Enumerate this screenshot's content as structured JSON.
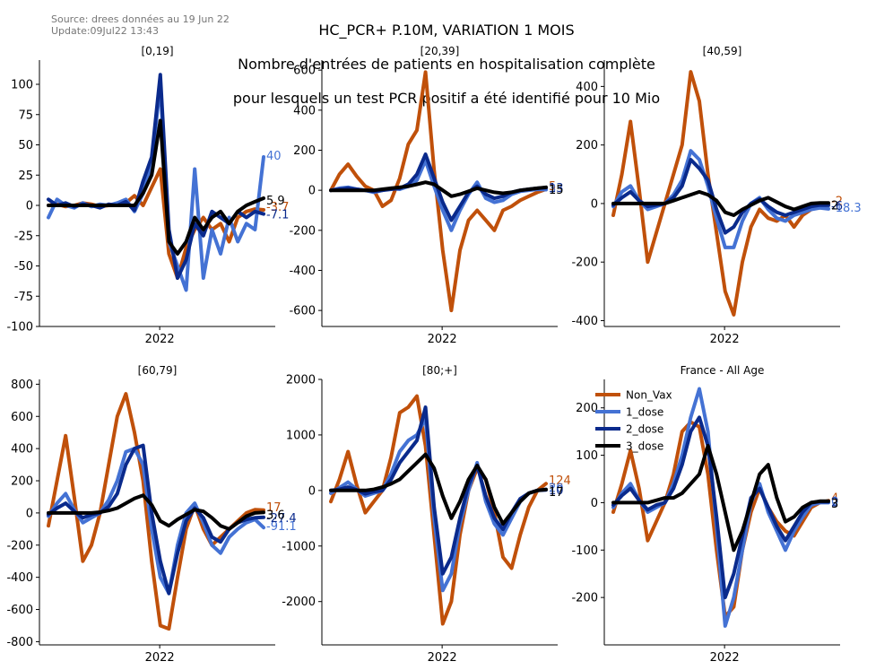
{
  "header": {
    "source_line1": "Source: drees données au 19 Jun 22",
    "source_line2": "Update:09Jul22 13:43",
    "title_line1": "HC_PCR+ P.10M, VARIATION 1 MOIS",
    "title_line2": "Nombre d'entrées de patients en hospitalisation complète",
    "title_line3": "pour lesquels un test PCR positif a été identifié pour 10 Mio"
  },
  "colors": {
    "Non_Vax": "#c0500a",
    "1_dose": "#4472d4",
    "2_dose": "#0a2a8c",
    "3_dose": "#000000"
  },
  "chart_data": [
    {
      "type": "line",
      "title": "[0,19]",
      "xtick": "2022",
      "ylim": [
        -100,
        120
      ],
      "yticks": [
        -100,
        -75,
        -50,
        -25,
        0,
        25,
        50,
        75,
        100
      ],
      "x": [
        0,
        4,
        8,
        12,
        16,
        20,
        24,
        28,
        32,
        36,
        40,
        44,
        48,
        52,
        56,
        60,
        64,
        68,
        72,
        76,
        80,
        84,
        88,
        92,
        96,
        100
      ],
      "series": [
        {
          "name": "Non_Vax",
          "values": [
            0,
            1,
            -1,
            0,
            2,
            1,
            -1,
            0,
            1,
            2,
            8,
            0,
            15,
            30,
            -40,
            -60,
            -35,
            -20,
            -10,
            -20,
            -15,
            -30,
            -10,
            -5,
            -3,
            -3.7
          ]
        },
        {
          "name": "1_dose",
          "values": [
            -10,
            5,
            0,
            -2,
            2,
            -1,
            1,
            0,
            2,
            5,
            -5,
            10,
            35,
            100,
            -30,
            -50,
            -70,
            30,
            -60,
            -20,
            -40,
            -10,
            -30,
            -15,
            -20,
            40
          ]
        },
        {
          "name": "2_dose",
          "values": [
            5,
            0,
            2,
            -1,
            1,
            0,
            -2,
            1,
            0,
            3,
            -4,
            20,
            40,
            108,
            -20,
            -60,
            -45,
            -15,
            -25,
            -5,
            -10,
            -15,
            -5,
            -10,
            -5,
            -7.1
          ]
        },
        {
          "name": "3_dose",
          "values": [
            0,
            0,
            0,
            0,
            0,
            0,
            0,
            0,
            0,
            0,
            0,
            10,
            25,
            70,
            -30,
            -40,
            -30,
            -10,
            -20,
            -10,
            -5,
            -15,
            -5,
            0,
            3,
            5.9
          ]
        }
      ],
      "end_labels": [
        "-3.7",
        "40",
        "-7.1",
        "5.9"
      ]
    },
    {
      "type": "line",
      "title": "[20,39]",
      "xtick": "2022",
      "ylim": [
        -680,
        650
      ],
      "yticks": [
        -600,
        -400,
        -200,
        0,
        200,
        400,
        600
      ],
      "x": [
        0,
        4,
        8,
        12,
        16,
        20,
        24,
        28,
        32,
        36,
        40,
        44,
        48,
        52,
        56,
        60,
        64,
        68,
        72,
        76,
        80,
        84,
        88,
        92,
        96,
        100
      ],
      "series": [
        {
          "name": "Non_Vax",
          "values": [
            0,
            80,
            130,
            70,
            20,
            0,
            -80,
            -50,
            60,
            230,
            300,
            590,
            100,
            -300,
            -600,
            -300,
            -150,
            -100,
            -150,
            -200,
            -100,
            -80,
            -50,
            -30,
            -10,
            5
          ]
        },
        {
          "name": "1_dose",
          "values": [
            0,
            10,
            15,
            5,
            0,
            -10,
            0,
            10,
            5,
            20,
            50,
            150,
            20,
            -100,
            -200,
            -100,
            -20,
            40,
            -40,
            -60,
            -50,
            -20,
            -5,
            0,
            5,
            3
          ]
        },
        {
          "name": "2_dose",
          "values": [
            0,
            5,
            10,
            5,
            0,
            -5,
            0,
            5,
            10,
            30,
            80,
            180,
            60,
            -60,
            -150,
            -80,
            -10,
            20,
            -20,
            -40,
            -30,
            -10,
            0,
            5,
            10,
            13
          ]
        },
        {
          "name": "3_dose",
          "values": [
            0,
            0,
            0,
            0,
            0,
            0,
            5,
            10,
            15,
            20,
            30,
            40,
            30,
            0,
            -30,
            -20,
            -5,
            10,
            0,
            -10,
            -15,
            -10,
            0,
            5,
            10,
            15
          ]
        }
      ],
      "end_labels": [
        "5",
        "3",
        "13",
        "15"
      ]
    },
    {
      "type": "line",
      "title": "[40,59]",
      "xtick": "2022",
      "ylim": [
        -420,
        490
      ],
      "yticks": [
        -400,
        -200,
        0,
        200,
        400
      ],
      "x": [
        0,
        4,
        8,
        12,
        16,
        20,
        24,
        28,
        32,
        36,
        40,
        44,
        48,
        52,
        56,
        60,
        64,
        68,
        72,
        76,
        80,
        84,
        88,
        92,
        96,
        100
      ],
      "series": [
        {
          "name": "Non_Vax",
          "values": [
            -40,
            100,
            280,
            50,
            -200,
            -100,
            0,
            100,
            200,
            450,
            350,
            100,
            -100,
            -300,
            -380,
            -200,
            -80,
            -20,
            -50,
            -60,
            -40,
            -80,
            -40,
            -20,
            -10,
            -2
          ]
        },
        {
          "name": "1_dose",
          "values": [
            -10,
            40,
            60,
            10,
            -20,
            -10,
            0,
            30,
            80,
            180,
            150,
            60,
            -50,
            -150,
            -150,
            -60,
            0,
            20,
            -20,
            -50,
            -60,
            -40,
            -30,
            -20,
            -15,
            -18.3
          ]
        },
        {
          "name": "2_dose",
          "values": [
            -5,
            20,
            40,
            10,
            -10,
            -5,
            0,
            20,
            60,
            150,
            120,
            80,
            -20,
            -100,
            -80,
            -30,
            0,
            15,
            -10,
            -30,
            -40,
            -30,
            -20,
            -10,
            -5,
            -6
          ]
        },
        {
          "name": "3_dose",
          "values": [
            0,
            0,
            0,
            0,
            0,
            0,
            0,
            10,
            20,
            30,
            40,
            30,
            10,
            -30,
            -40,
            -20,
            -5,
            10,
            20,
            5,
            -10,
            -20,
            -10,
            0,
            2,
            2
          ]
        }
      ],
      "end_labels": [
        "-2",
        "-18.3",
        "-6",
        "2"
      ]
    },
    {
      "type": "line",
      "title": "[60,79]",
      "xtick": "2022",
      "ylim": [
        -820,
        830
      ],
      "yticks": [
        -800,
        -600,
        -400,
        -200,
        0,
        200,
        400,
        600,
        800
      ],
      "x": [
        0,
        4,
        8,
        12,
        16,
        20,
        24,
        28,
        32,
        36,
        40,
        44,
        48,
        52,
        56,
        60,
        64,
        68,
        72,
        76,
        80,
        84,
        88,
        92,
        96,
        100
      ],
      "series": [
        {
          "name": "Non_Vax",
          "values": [
            -80,
            200,
            480,
            100,
            -300,
            -200,
            0,
            300,
            600,
            740,
            500,
            200,
            -300,
            -700,
            -720,
            -400,
            -100,
            50,
            -100,
            -200,
            -150,
            -100,
            -50,
            0,
            20,
            17
          ]
        },
        {
          "name": "1_dose",
          "values": [
            -20,
            60,
            120,
            20,
            -60,
            -30,
            0,
            80,
            200,
            380,
            400,
            300,
            -100,
            -400,
            -500,
            -200,
            0,
            60,
            -60,
            -200,
            -250,
            -150,
            -100,
            -60,
            -40,
            -91.1
          ]
        },
        {
          "name": "2_dose",
          "values": [
            -10,
            30,
            60,
            10,
            -30,
            -10,
            0,
            40,
            120,
            300,
            400,
            420,
            0,
            -300,
            -500,
            -250,
            -50,
            30,
            -30,
            -150,
            -180,
            -100,
            -60,
            -40,
            -30,
            -27.4
          ]
        },
        {
          "name": "3_dose",
          "values": [
            0,
            0,
            0,
            0,
            0,
            0,
            5,
            15,
            30,
            60,
            90,
            110,
            50,
            -50,
            -80,
            -40,
            -10,
            20,
            10,
            -30,
            -80,
            -100,
            -60,
            -20,
            0,
            3.6
          ]
        }
      ],
      "end_labels": [
        "17",
        "-91.1",
        "-27.4",
        "3.6"
      ]
    },
    {
      "type": "line",
      "title": "[80;+]",
      "xtick": "2022",
      "ylim": [
        -2780,
        2000
      ],
      "yticks": [
        -2000,
        -1000,
        0,
        1000,
        2000
      ],
      "x": [
        0,
        4,
        8,
        12,
        16,
        20,
        24,
        28,
        32,
        36,
        40,
        44,
        48,
        52,
        56,
        60,
        64,
        68,
        72,
        76,
        80,
        84,
        88,
        92,
        96,
        100
      ],
      "series": [
        {
          "name": "Non_Vax",
          "values": [
            -200,
            200,
            700,
            100,
            -400,
            -200,
            0,
            600,
            1400,
            1500,
            1700,
            800,
            -800,
            -2400,
            -2000,
            -800,
            0,
            400,
            200,
            -400,
            -1200,
            -1400,
            -800,
            -300,
            0,
            124
          ]
        },
        {
          "name": "1_dose",
          "values": [
            -50,
            50,
            150,
            20,
            -100,
            -50,
            0,
            300,
            700,
            900,
            1000,
            1300,
            -500,
            -1800,
            -1500,
            -600,
            0,
            500,
            -200,
            -600,
            -800,
            -500,
            -200,
            -50,
            0,
            20
          ]
        },
        {
          "name": "2_dose",
          "values": [
            0,
            20,
            60,
            10,
            -60,
            -20,
            0,
            200,
            500,
            700,
            900,
            1500,
            -300,
            -1500,
            -1200,
            -500,
            100,
            450,
            -100,
            -500,
            -700,
            -400,
            -150,
            -50,
            0,
            10
          ]
        },
        {
          "name": "3_dose",
          "values": [
            0,
            0,
            0,
            0,
            0,
            20,
            60,
            120,
            200,
            350,
            500,
            650,
            400,
            -100,
            -500,
            -200,
            200,
            450,
            200,
            -300,
            -600,
            -400,
            -200,
            -50,
            0,
            17
          ]
        }
      ],
      "end_labels": [
        "124",
        "20",
        "10",
        "17"
      ]
    },
    {
      "type": "line",
      "title": "France - All Age",
      "xtick": "2022",
      "ylim": [
        -300,
        260
      ],
      "yticks": [
        -200,
        -100,
        0,
        100,
        200
      ],
      "x": [
        0,
        4,
        8,
        12,
        16,
        20,
        24,
        28,
        32,
        36,
        40,
        44,
        48,
        52,
        56,
        60,
        64,
        68,
        72,
        76,
        80,
        84,
        88,
        92,
        96,
        100
      ],
      "series": [
        {
          "name": "Non_Vax",
          "values": [
            -20,
            40,
            110,
            30,
            -80,
            -40,
            0,
            60,
            150,
            170,
            160,
            60,
            -100,
            -240,
            -220,
            -100,
            -20,
            30,
            -10,
            -40,
            -60,
            -70,
            -40,
            -10,
            0,
            4
          ]
        },
        {
          "name": "1_dose",
          "values": [
            -10,
            20,
            40,
            5,
            -20,
            -10,
            0,
            40,
            100,
            180,
            240,
            150,
            -50,
            -260,
            -200,
            -100,
            0,
            40,
            -20,
            -60,
            -100,
            -60,
            -30,
            -5,
            0,
            0
          ]
        },
        {
          "name": "2_dose",
          "values": [
            -5,
            15,
            30,
            5,
            -15,
            -5,
            0,
            30,
            80,
            150,
            180,
            120,
            -30,
            -200,
            -150,
            -70,
            10,
            30,
            -10,
            -50,
            -80,
            -50,
            -20,
            0,
            2,
            2
          ]
        },
        {
          "name": "3_dose",
          "values": [
            0,
            0,
            0,
            0,
            0,
            5,
            10,
            10,
            20,
            40,
            60,
            120,
            60,
            -20,
            -100,
            -60,
            0,
            60,
            80,
            10,
            -40,
            -30,
            -10,
            0,
            3,
            3
          ]
        }
      ],
      "end_labels": [
        "4",
        "0",
        "2",
        "3"
      ],
      "legend": "top-left",
      "legend_entries": [
        "Non_Vax",
        "1_dose",
        "2_dose",
        "3_dose"
      ]
    }
  ]
}
